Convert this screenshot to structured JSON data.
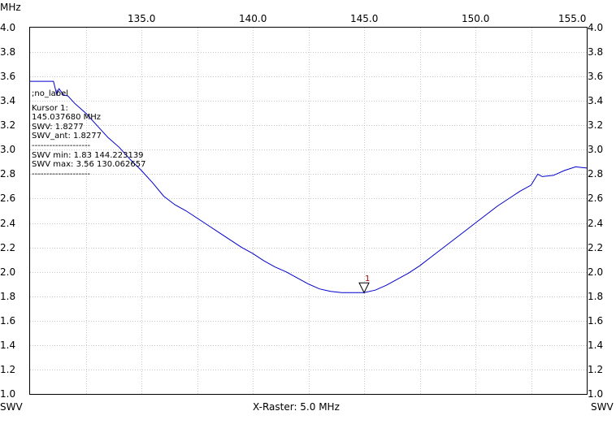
{
  "corner": {
    "top_left_unit": "MHz",
    "bottom_left_unit": "SWV",
    "bottom_right_unit": "SWV",
    "raster": "X-Raster: 5.0 MHz"
  },
  "info": {
    "label": ";no_label",
    "cursor_title": "Kursor 1:",
    "cursor_freq": "145.037680 MHz",
    "swv": "SWV: 1.8277",
    "swv_ant": "SWV_ant: 1.8277",
    "sep1": "--------------------",
    "swv_min": "SWV min: 1.83  144.223139",
    "swv_max": "SWV max: 3.56  130.062657",
    "sep2": "--------------------"
  },
  "colors": {
    "trace": "#0000cc",
    "marker": "#aa0000",
    "grid": "#c8c8c8"
  },
  "chart_data": {
    "type": "line",
    "title": "",
    "xlabel": "X-Raster: 5.0 MHz",
    "ylabel": "SWV",
    "xlim": [
      130.0,
      155.0
    ],
    "ylim": [
      1.0,
      4.0
    ],
    "x_ticks": [
      "135.0",
      "140.0",
      "145.0",
      "150.0",
      "155.0"
    ],
    "x_tick_values": [
      135.0,
      140.0,
      145.0,
      150.0,
      155.0
    ],
    "y_ticks": [
      "1.0",
      "1.2",
      "1.4",
      "1.6",
      "1.8",
      "2.0",
      "2.2",
      "2.4",
      "2.6",
      "2.8",
      "3.0",
      "3.2",
      "3.4",
      "3.6",
      "3.8",
      "4.0"
    ],
    "grid": true,
    "series": [
      {
        "name": "",
        "x": [
          130.0,
          131.05,
          131.2,
          131.3,
          131.5,
          131.7,
          132.0,
          132.5,
          133.0,
          133.5,
          134.0,
          134.5,
          135.0,
          135.5,
          136.0,
          136.5,
          137.0,
          137.5,
          138.0,
          138.5,
          139.0,
          139.5,
          140.0,
          140.5,
          141.0,
          141.5,
          142.0,
          142.5,
          143.0,
          143.5,
          144.0,
          144.5,
          145.0,
          145.5,
          146.0,
          146.5,
          147.0,
          147.5,
          148.0,
          148.5,
          149.0,
          149.5,
          150.0,
          150.5,
          151.0,
          151.5,
          152.0,
          152.5,
          152.8,
          153.0,
          153.5,
          154.0,
          154.5,
          155.0
        ],
        "y": [
          3.56,
          3.56,
          3.45,
          3.5,
          3.45,
          3.44,
          3.38,
          3.3,
          3.2,
          3.1,
          3.02,
          2.92,
          2.83,
          2.73,
          2.62,
          2.55,
          2.5,
          2.44,
          2.38,
          2.32,
          2.26,
          2.2,
          2.15,
          2.09,
          2.04,
          2.0,
          1.95,
          1.9,
          1.86,
          1.84,
          1.83,
          1.83,
          1.83,
          1.85,
          1.89,
          1.94,
          1.99,
          2.05,
          2.12,
          2.19,
          2.26,
          2.33,
          2.4,
          2.47,
          2.54,
          2.6,
          2.66,
          2.71,
          2.8,
          2.78,
          2.79,
          2.83,
          2.86,
          2.85
        ]
      }
    ],
    "markers": [
      {
        "label": "1",
        "x": 145.0,
        "y": 1.83
      }
    ]
  }
}
